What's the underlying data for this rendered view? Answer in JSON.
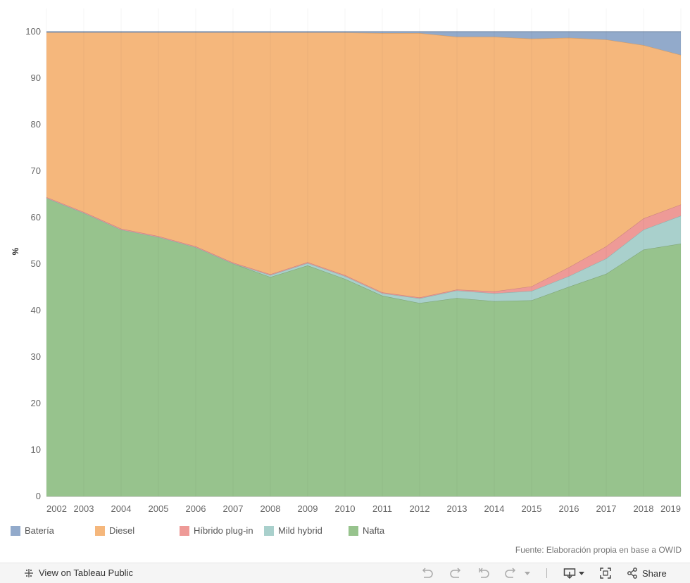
{
  "chart_data": {
    "type": "area",
    "stacked": true,
    "ylabel": "%",
    "xlabel": "",
    "ylim": [
      0,
      100
    ],
    "yticks": [
      0,
      10,
      20,
      30,
      40,
      50,
      60,
      70,
      80,
      90,
      100
    ],
    "x": [
      2002,
      2003,
      2004,
      2005,
      2006,
      2007,
      2008,
      2009,
      2010,
      2011,
      2012,
      2013,
      2014,
      2015,
      2016,
      2017,
      2018,
      2019
    ],
    "series": [
      {
        "name": "Nafta",
        "color": "#97c38d",
        "values": [
          64.2,
          61.0,
          57.4,
          55.8,
          53.6,
          50.1,
          47.2,
          49.7,
          46.8,
          43.2,
          41.6,
          42.7,
          42.0,
          42.2,
          45.1,
          47.9,
          53.1,
          54.4
        ]
      },
      {
        "name": "Mild hybrid",
        "color": "#a9d0cc",
        "values": [
          0.0,
          0.0,
          0.0,
          0.0,
          0.0,
          0.0,
          0.4,
          0.5,
          0.6,
          0.5,
          1.0,
          1.6,
          1.7,
          2.0,
          2.3,
          3.3,
          4.3,
          6.0
        ]
      },
      {
        "name": "Híbrido plug-in",
        "color": "#ee9a97",
        "values": [
          0.2,
          0.2,
          0.2,
          0.2,
          0.2,
          0.2,
          0.2,
          0.2,
          0.2,
          0.2,
          0.2,
          0.2,
          0.4,
          1.0,
          1.9,
          2.6,
          2.4,
          2.4
        ]
      },
      {
        "name": "Diesel",
        "color": "#f5b77c",
        "values": [
          35.4,
          38.6,
          42.2,
          43.8,
          46.0,
          49.5,
          52.0,
          49.4,
          52.2,
          55.8,
          56.9,
          54.4,
          54.8,
          53.3,
          49.4,
          44.5,
          37.3,
          32.2
        ]
      },
      {
        "name": "Batería",
        "color": "#92aacb",
        "values": [
          0.2,
          0.2,
          0.2,
          0.2,
          0.2,
          0.2,
          0.2,
          0.2,
          0.2,
          0.3,
          0.3,
          1.1,
          1.1,
          1.5,
          1.3,
          1.7,
          2.9,
          5.0
        ]
      }
    ],
    "legend_order": [
      "Batería",
      "Diesel",
      "Híbrido plug-in",
      "Mild hybrid",
      "Nafta"
    ],
    "legend_position": "bottom",
    "grid": false
  },
  "legend": {
    "items": [
      {
        "label": "Batería",
        "color": "#92aacb"
      },
      {
        "label": "Diesel",
        "color": "#f5b77c"
      },
      {
        "label": "Híbrido plug-in",
        "color": "#ee9a97"
      },
      {
        "label": "Mild hybrid",
        "color": "#a9d0cc"
      },
      {
        "label": "Nafta",
        "color": "#97c38d"
      }
    ]
  },
  "source_text": "Fuente: Elaboración propia en base a OWID",
  "toolbar": {
    "view_label": "View on Tableau Public",
    "share_label": "Share",
    "icons": [
      "tableau-icon",
      "undo-icon",
      "redo-icon",
      "revert-icon",
      "refresh-icon",
      "dropdown-icon",
      "download-icon",
      "fullscreen-icon",
      "share-icon"
    ]
  }
}
